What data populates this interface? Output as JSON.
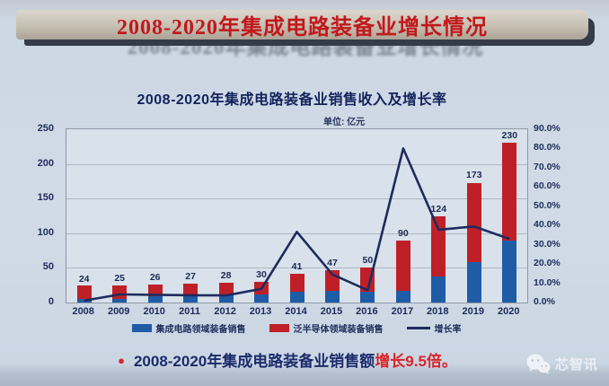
{
  "banner": {
    "title": "2008-2020年集成电路装备业增长情况"
  },
  "chart_data": {
    "type": "combo-stacked-bar-line",
    "title": "2008-2020年集成电路装备业销售收入及增长率",
    "unit": "单位: 亿元",
    "categories": [
      "2008",
      "2009",
      "2010",
      "2011",
      "2012",
      "2013",
      "2014",
      "2015",
      "2016",
      "2017",
      "2018",
      "2019",
      "2020"
    ],
    "series": [
      {
        "name": "集成电路领域装备销售",
        "type": "bar",
        "stack": true,
        "color": "#1e5ca6",
        "values": [
          5,
          5,
          9,
          9,
          10,
          12,
          15,
          17,
          15,
          17,
          38,
          59,
          89
        ]
      },
      {
        "name": "泛半导体领域装备销售",
        "type": "bar",
        "stack": true,
        "color": "#bf2028",
        "values": [
          19,
          20,
          17,
          18,
          18,
          18,
          26,
          30,
          35,
          73,
          86,
          114,
          141
        ]
      },
      {
        "name": "增长率",
        "type": "line",
        "axis": "right",
        "color": "#1d2b5e",
        "values": [
          1.0,
          4.2,
          4.0,
          3.8,
          3.7,
          7.1,
          36.7,
          14.6,
          6.4,
          80.0,
          37.8,
          39.5,
          33.0
        ]
      }
    ],
    "bar_totals": [
      24,
      25,
      26,
      27,
      28,
      30,
      41,
      47,
      50,
      90,
      124,
      173,
      230
    ],
    "left_axis": {
      "min": 0,
      "max": 250,
      "step": 50,
      "ticks_top_to_bottom": [
        "250",
        "200",
        "150",
        "100",
        "50",
        "0"
      ]
    },
    "right_axis": {
      "min": 0,
      "max": 90,
      "step": 10,
      "ticks_top_to_bottom": [
        "90.0%",
        "80.0%",
        "70.0%",
        "60.0%",
        "50.0%",
        "40.0%",
        "30.0%",
        "20.0%",
        "10.0%",
        "0.0%"
      ]
    },
    "grid": true,
    "legend_position": "bottom"
  },
  "footer": {
    "bullet": "●",
    "main": "2008-2020年集成电路装备业销售额",
    "highlight": "增长9.5倍。"
  },
  "watermark": {
    "label": "芯智讯",
    "icon": "wechat-icon"
  }
}
